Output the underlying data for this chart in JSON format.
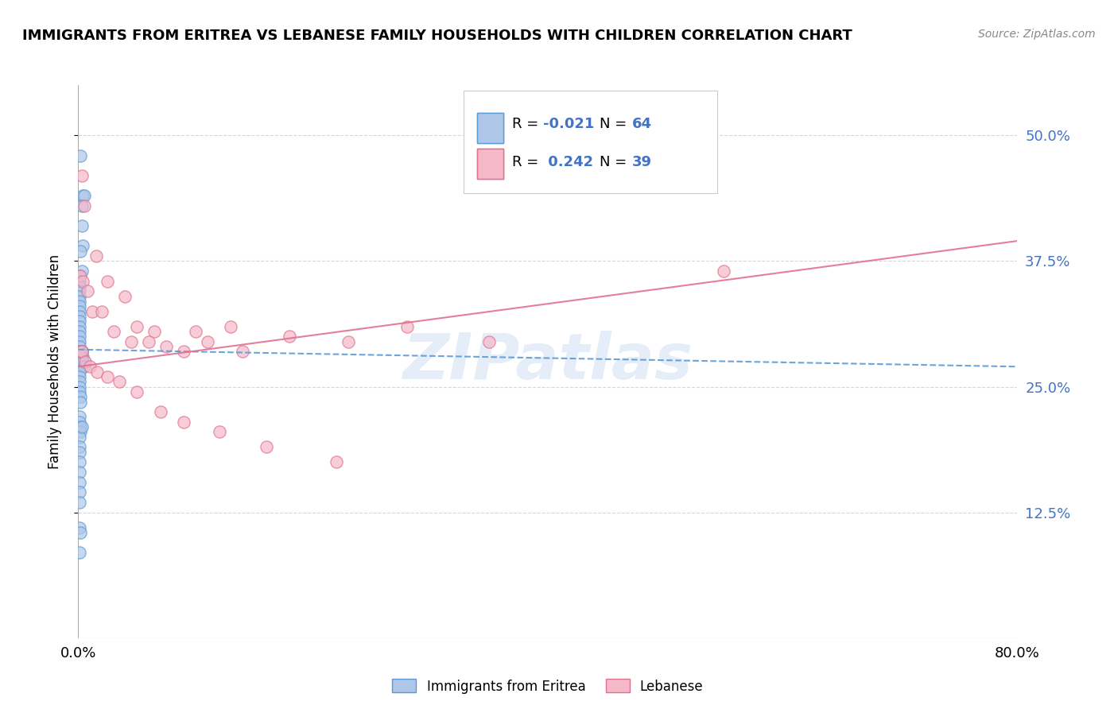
{
  "title": "IMMIGRANTS FROM ERITREA VS LEBANESE FAMILY HOUSEHOLDS WITH CHILDREN CORRELATION CHART",
  "source": "Source: ZipAtlas.com",
  "ylabel": "Family Households with Children",
  "xlim": [
    0.0,
    0.8
  ],
  "ylim": [
    0.0,
    0.55
  ],
  "yticks": [
    0.125,
    0.25,
    0.375,
    0.5
  ],
  "ytick_labels": [
    "12.5%",
    "25.0%",
    "37.5%",
    "50.0%"
  ],
  "xticks": [
    0.0,
    0.1,
    0.2,
    0.3,
    0.4,
    0.5,
    0.6,
    0.7,
    0.8
  ],
  "color_eritrea_fill": "#aec6e8",
  "color_eritrea_edge": "#5b9bd5",
  "color_lebanese_fill": "#f4b8c8",
  "color_lebanese_edge": "#e07090",
  "color_line_eritrea": "#5b9bd5",
  "color_line_lebanese": "#e07090",
  "color_ytick": "#4472c4",
  "background": "#ffffff",
  "watermark": "ZIPatlas",
  "eritrea_x": [
    0.002,
    0.004,
    0.005,
    0.003,
    0.003,
    0.004,
    0.002,
    0.003,
    0.001,
    0.001,
    0.001,
    0.001,
    0.001,
    0.001,
    0.001,
    0.001,
    0.001,
    0.001,
    0.001,
    0.001,
    0.001,
    0.001,
    0.001,
    0.001,
    0.001,
    0.001,
    0.001,
    0.001,
    0.002,
    0.002,
    0.002,
    0.002,
    0.002,
    0.002,
    0.003,
    0.003,
    0.003,
    0.004,
    0.004,
    0.005,
    0.001,
    0.001,
    0.001,
    0.001,
    0.001,
    0.002,
    0.002,
    0.003,
    0.001,
    0.001,
    0.002,
    0.002,
    0.001,
    0.001,
    0.001,
    0.001,
    0.001,
    0.001,
    0.001,
    0.001,
    0.001,
    0.002,
    0.003,
    0.001
  ],
  "eritrea_y": [
    0.48,
    0.44,
    0.44,
    0.43,
    0.41,
    0.39,
    0.385,
    0.365,
    0.36,
    0.355,
    0.35,
    0.345,
    0.34,
    0.335,
    0.33,
    0.325,
    0.32,
    0.315,
    0.31,
    0.305,
    0.3,
    0.295,
    0.29,
    0.285,
    0.285,
    0.285,
    0.285,
    0.285,
    0.285,
    0.28,
    0.28,
    0.275,
    0.275,
    0.27,
    0.285,
    0.28,
    0.275,
    0.28,
    0.275,
    0.27,
    0.265,
    0.26,
    0.255,
    0.25,
    0.245,
    0.24,
    0.235,
    0.285,
    0.22,
    0.215,
    0.21,
    0.205,
    0.2,
    0.19,
    0.185,
    0.175,
    0.165,
    0.155,
    0.145,
    0.135,
    0.11,
    0.105,
    0.21,
    0.085
  ],
  "lebanese_x": [
    0.003,
    0.005,
    0.015,
    0.025,
    0.04,
    0.05,
    0.065,
    0.1,
    0.13,
    0.18,
    0.23,
    0.28,
    0.35,
    0.55,
    0.002,
    0.004,
    0.008,
    0.012,
    0.02,
    0.03,
    0.045,
    0.06,
    0.075,
    0.09,
    0.11,
    0.14,
    0.001,
    0.003,
    0.006,
    0.01,
    0.016,
    0.025,
    0.035,
    0.05,
    0.07,
    0.09,
    0.12,
    0.16,
    0.22
  ],
  "lebanese_y": [
    0.46,
    0.43,
    0.38,
    0.355,
    0.34,
    0.31,
    0.305,
    0.305,
    0.31,
    0.3,
    0.295,
    0.31,
    0.295,
    0.365,
    0.36,
    0.355,
    0.345,
    0.325,
    0.325,
    0.305,
    0.295,
    0.295,
    0.29,
    0.285,
    0.295,
    0.285,
    0.285,
    0.285,
    0.275,
    0.27,
    0.265,
    0.26,
    0.255,
    0.245,
    0.225,
    0.215,
    0.205,
    0.19,
    0.175
  ],
  "trendline_eritrea_y0": 0.287,
  "trendline_eritrea_y1": 0.27,
  "trendline_lebanese_y0": 0.27,
  "trendline_lebanese_y1": 0.395
}
